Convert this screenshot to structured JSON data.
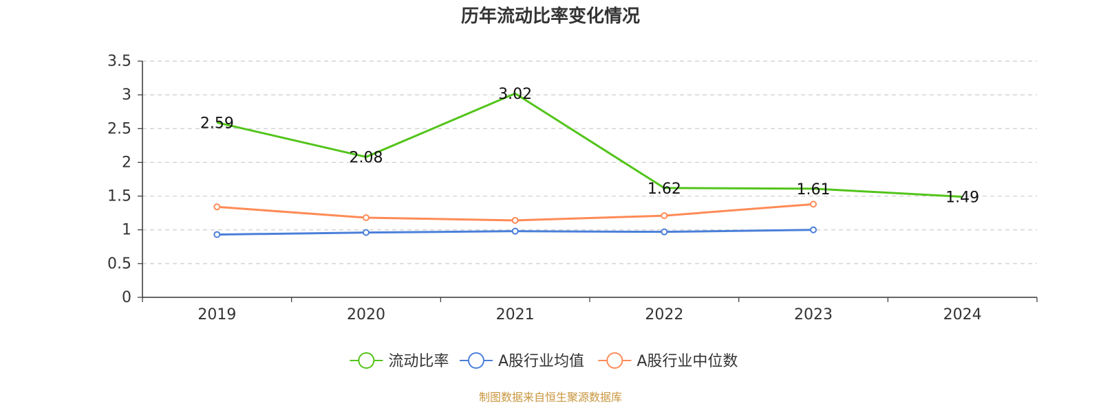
{
  "chart_data": {
    "type": "line",
    "title": "历年流动比率变化情况",
    "categories": [
      "2019",
      "2020",
      "2021",
      "2022",
      "2023",
      "2024"
    ],
    "ylim": [
      0,
      3.5
    ],
    "yticks": [
      0,
      0.5,
      1,
      1.5,
      2,
      2.5,
      3,
      3.5
    ],
    "ytick_labels": [
      "0",
      "0.5",
      "1",
      "1.5",
      "2",
      "2.5",
      "3",
      "3.5"
    ],
    "grid": true,
    "legend_position": "bottom",
    "series": [
      {
        "name": "流动比率",
        "color": "#52c41a",
        "values": [
          2.59,
          2.08,
          3.02,
          1.62,
          1.61,
          1.49
        ],
        "show_labels": true,
        "labels": [
          "2.59",
          "2.08",
          "3.02",
          "1.62",
          "1.61",
          "1.49"
        ],
        "show_markers": false
      },
      {
        "name": "A股行业均值",
        "color": "#4a7fd9",
        "values": [
          0.93,
          0.96,
          0.98,
          0.97,
          1.0,
          null
        ],
        "show_labels": false,
        "show_markers": true
      },
      {
        "name": "A股行业中位数",
        "color": "#ff8a56",
        "values": [
          1.34,
          1.18,
          1.14,
          1.21,
          1.38,
          null
        ],
        "show_labels": false,
        "show_markers": true
      }
    ],
    "source": "制图数据来自恒生聚源数据库"
  }
}
